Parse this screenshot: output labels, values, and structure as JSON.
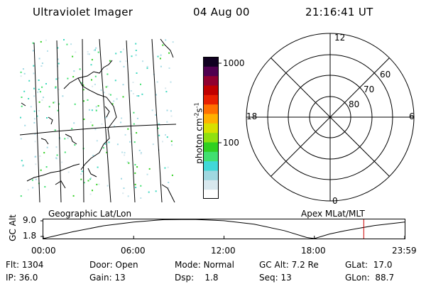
{
  "header": {
    "instrument": "Ultraviolet Imager",
    "date": "04 Aug 00",
    "time": "21:16:41 UT"
  },
  "left_panel": {
    "label": "Geographic Lat/Lon"
  },
  "color_bar": {
    "label": "photon cm-2s-1",
    "tick_labels": [
      "1000",
      "100"
    ],
    "colors": [
      "#ffffff",
      "#d8e8ee",
      "#a0d8e0",
      "#40d8d8",
      "#40e070",
      "#30d020",
      "#90e010",
      "#d8e000",
      "#ffb000",
      "#ff7000",
      "#e82000",
      "#c00000",
      "#900030",
      "#500050",
      "#100020"
    ]
  },
  "polar_plot": {
    "label": "Apex MLat/MLT",
    "lat_labels": [
      "60",
      "70",
      "80"
    ],
    "mlt_labels": {
      "top": "12",
      "bottom": "0",
      "left": "18",
      "right": "6"
    }
  },
  "chart_data": {
    "type": "line",
    "title": "",
    "ylabel": "GC Alt",
    "ytick_labels": [
      "9.0",
      "1.8"
    ],
    "ylim": [
      1.8,
      9.0
    ],
    "xtick_labels": [
      "00:00",
      "06:00",
      "12:00",
      "18:00",
      "23:59"
    ],
    "xlim_hours": [
      0,
      24
    ],
    "series": [
      {
        "x_hours": [
          0,
          2,
          4,
          6,
          8,
          10,
          12,
          14,
          16,
          17.5,
          18,
          19,
          20,
          22,
          24
        ],
        "values": [
          1.8,
          4.4,
          6.6,
          8.0,
          8.9,
          9.0,
          8.5,
          7.2,
          4.8,
          2.2,
          1.8,
          3.5,
          4.7,
          6.7,
          8.0
        ]
      }
    ],
    "marker": {
      "x_hours": 21.28,
      "color": "#cc0000"
    }
  },
  "footer": {
    "row1": [
      {
        "label": "Flt:",
        "value": "1304"
      },
      {
        "label": "Door:",
        "value": "Open"
      },
      {
        "label": "Mode:",
        "value": "Normal"
      },
      {
        "label": "GC Alt:",
        "value": "7.2 Re"
      },
      {
        "label": "GLat:",
        "value": "17.0"
      }
    ],
    "row2": [
      {
        "label": "IP:",
        "value": "36.0"
      },
      {
        "label": "Gain:",
        "value": "13"
      },
      {
        "label": "Dsp:",
        "value": "1.8"
      },
      {
        "label": "Seq:",
        "value": "13"
      },
      {
        "label": "GLon:",
        "value": "88.7"
      }
    ]
  }
}
